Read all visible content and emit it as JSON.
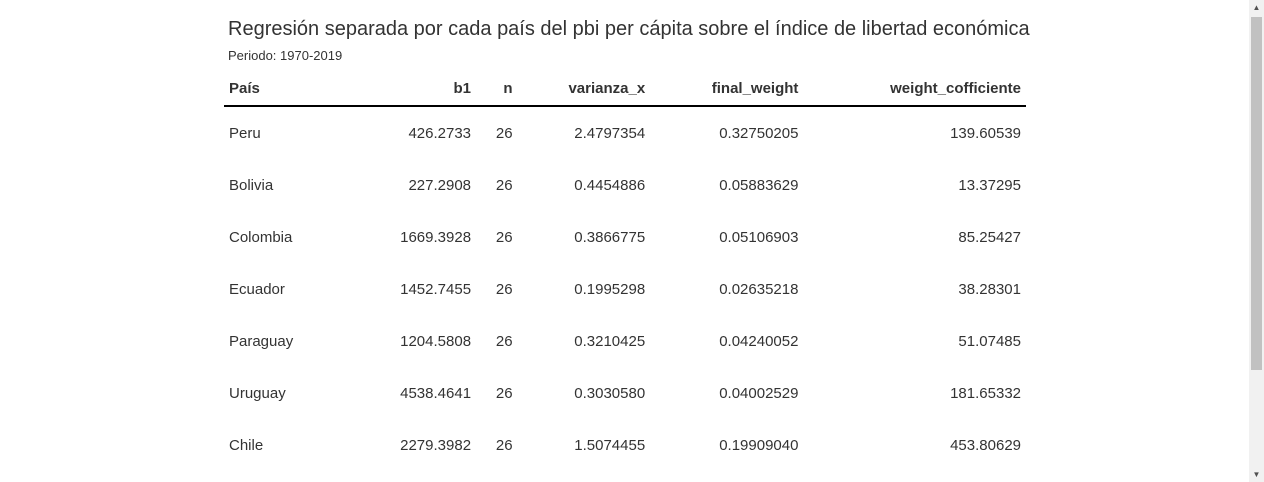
{
  "header": {
    "title": "Regresión separada por cada país del pbi per cápita sobre el índice de libertad económica",
    "subtitle": "Periodo: 1970-2019"
  },
  "table": {
    "columns": [
      "País",
      "b1",
      "n",
      "varianza_x",
      "final_weight",
      "weight_cofficiente"
    ],
    "rows": [
      [
        "Peru",
        "426.2733",
        "26",
        "2.4797354",
        "0.32750205",
        "139.60539"
      ],
      [
        "Bolivia",
        "227.2908",
        "26",
        "0.4454886",
        "0.05883629",
        "13.37295"
      ],
      [
        "Colombia",
        "1669.3928",
        "26",
        "0.3866775",
        "0.05106903",
        "85.25427"
      ],
      [
        "Ecuador",
        "1452.7455",
        "26",
        "0.1995298",
        "0.02635218",
        "38.28301"
      ],
      [
        "Paraguay",
        "1204.5808",
        "26",
        "0.3210425",
        "0.04240052",
        "51.07485"
      ],
      [
        "Uruguay",
        "4538.4641",
        "26",
        "0.3030580",
        "0.04002529",
        "181.65332"
      ],
      [
        "Chile",
        "2279.3982",
        "26",
        "1.5074455",
        "0.19909040",
        "453.80629"
      ]
    ]
  },
  "scrollbar": {
    "up_icon": "triangle-up",
    "down_icon": "triangle-down"
  }
}
